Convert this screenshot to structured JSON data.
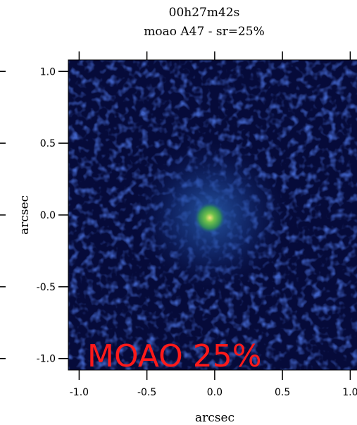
{
  "chart_data": {
    "type": "image",
    "title": "00h27m42s",
    "subtitle": "moao A47 - sr=25%",
    "xlabel": "arcsec",
    "ylabel": "arcsec",
    "annotation": "MOAO 25%",
    "xlim": [
      -1.08,
      1.05
    ],
    "ylim": [
      -1.08,
      1.08
    ],
    "xticks": [
      {
        "value": -1.0,
        "label": "-1.0"
      },
      {
        "value": -0.5,
        "label": "-0.5"
      },
      {
        "value": 0.0,
        "label": "0.0"
      },
      {
        "value": 0.5,
        "label": "0.5"
      },
      {
        "value": 1.0,
        "label": "1.0"
      }
    ],
    "yticks": [
      {
        "value": -1.0,
        "label": "-1.0"
      },
      {
        "value": -0.5,
        "label": "-0.5"
      },
      {
        "value": 0.0,
        "label": "0.0"
      },
      {
        "value": 0.5,
        "label": "0.5"
      },
      {
        "value": 1.0,
        "label": "1.0"
      }
    ]
  }
}
